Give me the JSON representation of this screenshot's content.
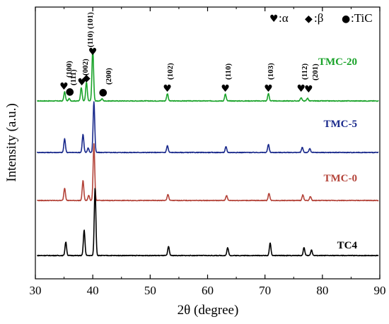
{
  "chart_data": {
    "type": "line",
    "xlabel": "2θ (degree)",
    "ylabel": "Intensity (a.u.)",
    "xlim": [
      30,
      90
    ],
    "xticks": [
      "30",
      "40",
      "50",
      "60",
      "70",
      "80",
      "90"
    ],
    "legend": {
      "placement": "top-right",
      "entries": [
        {
          "symbol": "♥",
          "label": ":α"
        },
        {
          "symbol": "◆",
          "label": ":β"
        },
        {
          "symbol": "●",
          "label": ":TiC"
        }
      ]
    },
    "series": [
      {
        "name": "TMC-20",
        "color": "#1aa32a",
        "offset": 3,
        "peaks": [
          {
            "x": 35.1,
            "h": 0.16
          },
          {
            "x": 35.9,
            "h": 0.04
          },
          {
            "x": 38.0,
            "h": 0.24
          },
          {
            "x": 38.9,
            "h": 0.33
          },
          {
            "x": 40.0,
            "h": 0.92
          },
          {
            "x": 41.6,
            "h": 0.04
          },
          {
            "x": 53.0,
            "h": 0.13
          },
          {
            "x": 63.1,
            "h": 0.12
          },
          {
            "x": 70.6,
            "h": 0.13
          },
          {
            "x": 76.3,
            "h": 0.06
          },
          {
            "x": 77.4,
            "h": 0.05
          }
        ]
      },
      {
        "name": "TMC-5",
        "color": "#1a2a8c",
        "offset": 2,
        "peaks": [
          {
            "x": 35.1,
            "h": 0.24
          },
          {
            "x": 38.3,
            "h": 0.32
          },
          {
            "x": 39.2,
            "h": 0.08
          },
          {
            "x": 40.2,
            "h": 0.9
          },
          {
            "x": 53.0,
            "h": 0.12
          },
          {
            "x": 63.2,
            "h": 0.1
          },
          {
            "x": 70.6,
            "h": 0.14
          },
          {
            "x": 76.5,
            "h": 0.09
          },
          {
            "x": 77.8,
            "h": 0.07
          }
        ]
      },
      {
        "name": "TMC-0",
        "color": "#b4443a",
        "offset": 1,
        "peaks": [
          {
            "x": 35.1,
            "h": 0.22
          },
          {
            "x": 38.3,
            "h": 0.35
          },
          {
            "x": 39.3,
            "h": 0.09
          },
          {
            "x": 40.2,
            "h": 1.0
          },
          {
            "x": 53.1,
            "h": 0.11
          },
          {
            "x": 63.3,
            "h": 0.09
          },
          {
            "x": 70.7,
            "h": 0.13
          },
          {
            "x": 76.6,
            "h": 0.1
          },
          {
            "x": 77.9,
            "h": 0.07
          }
        ]
      },
      {
        "name": "TC4",
        "color": "#000000",
        "offset": 0,
        "peaks": [
          {
            "x": 35.3,
            "h": 0.24
          },
          {
            "x": 38.5,
            "h": 0.45
          },
          {
            "x": 40.4,
            "h": 1.2
          },
          {
            "x": 53.2,
            "h": 0.16
          },
          {
            "x": 63.5,
            "h": 0.14
          },
          {
            "x": 70.9,
            "h": 0.22
          },
          {
            "x": 76.8,
            "h": 0.14
          },
          {
            "x": 78.1,
            "h": 0.1
          }
        ]
      }
    ],
    "annotations": [
      {
        "phase": "α",
        "symbol": "♥",
        "x": 35.0,
        "label": "(100)"
      },
      {
        "phase": "TiC",
        "symbol": "●",
        "x": 36.0,
        "label": "(111)"
      },
      {
        "phase": "α",
        "symbol": "♥",
        "x": 38.1,
        "label": "(002)"
      },
      {
        "phase": "β",
        "symbol": "◆",
        "x": 38.9,
        "label": ""
      },
      {
        "phase": "α",
        "symbol": "♥",
        "x": 40.0,
        "label": "(110) (101)"
      },
      {
        "phase": "TiC",
        "symbol": "●",
        "x": 41.8,
        "label": "(200)"
      },
      {
        "phase": "α",
        "symbol": "♥",
        "x": 53.0,
        "label": "(102)"
      },
      {
        "phase": "α",
        "symbol": "♥",
        "x": 63.1,
        "label": "(110)"
      },
      {
        "phase": "α",
        "symbol": "♥",
        "x": 70.6,
        "label": "(103)"
      },
      {
        "phase": "α",
        "symbol": "♥",
        "x": 76.3,
        "label": "(112)"
      },
      {
        "phase": "α",
        "symbol": "♥",
        "x": 77.6,
        "label": "(201)"
      }
    ]
  }
}
